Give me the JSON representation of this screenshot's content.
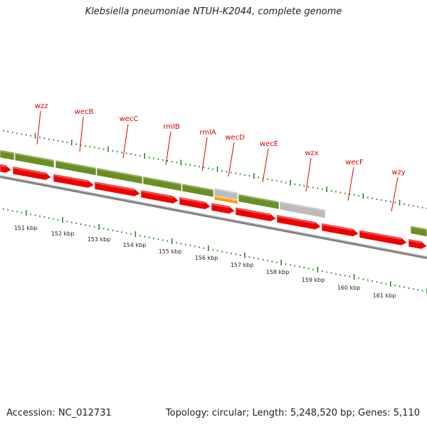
{
  "header": {
    "title": "Klebsiella pneumoniae NTUH-K2044, complete genome"
  },
  "footer": {
    "accession": "Accession: NC_012731",
    "summary": "Topology: circular; Length: 5,248,520 bp; Genes: 5,110"
  },
  "genes": [
    "wzz",
    "wecB",
    "wecC",
    "rmlB",
    "rmlA",
    "wecD",
    "wecE",
    "wzx",
    "wecF",
    "wzy"
  ],
  "ruler_ticks": [
    "151 kbp",
    "152 kbp",
    "153 kbp",
    "154 kbp",
    "155 kbp",
    "156 kbp",
    "157 kbp",
    "158 kbp",
    "159 kbp",
    "160 kbp",
    "161 kbp"
  ],
  "colors": {
    "gene_label": "#e00000",
    "cds": "#ee0000",
    "feature_green": "#6b8e23",
    "feature_gray": "#bbbbbb",
    "feature_orange": "#ff9900",
    "dots": "#1f7f1f",
    "backbone": "#808080"
  }
}
